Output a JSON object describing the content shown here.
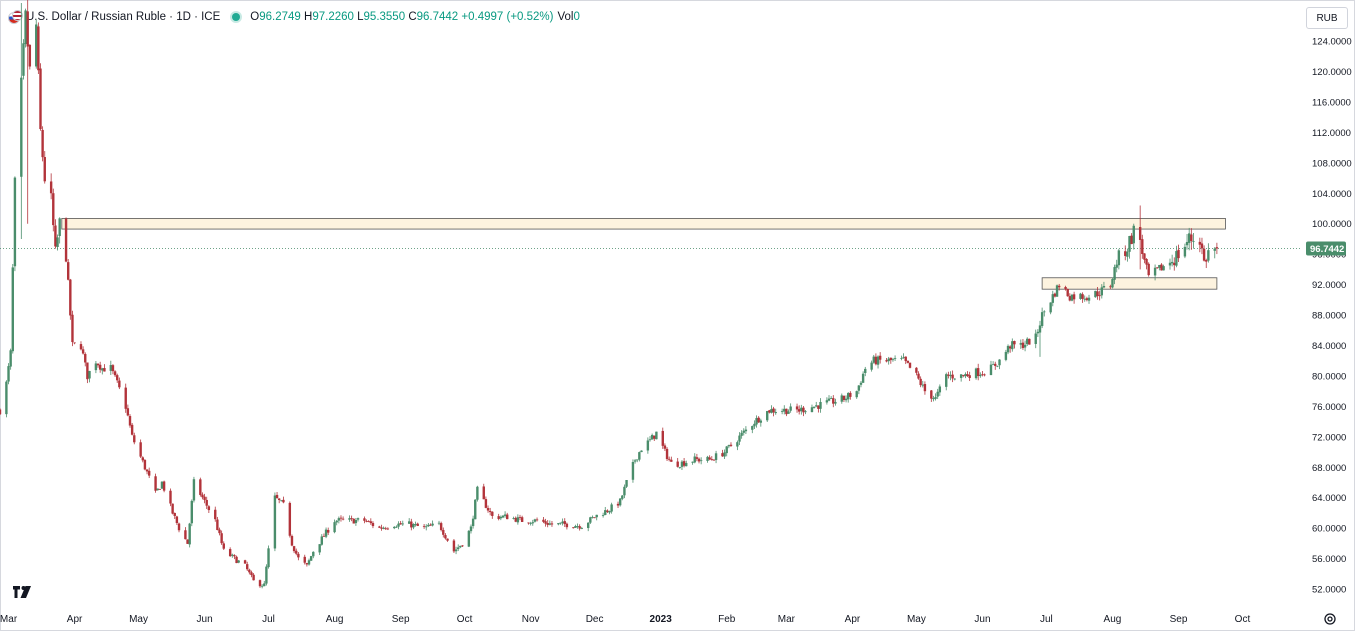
{
  "header": {
    "title": "U.S. Dollar / Russian Ruble · 1D · ICE",
    "ohlc": [
      {
        "key": "O",
        "value": "96.2749"
      },
      {
        "key": "H",
        "value": "97.2260"
      },
      {
        "key": "L",
        "value": "95.3550"
      },
      {
        "key": "C",
        "value": "96.7442"
      }
    ],
    "change": "+0.4997 (+0.52%)",
    "volume_label": "Vol",
    "volume_value": "0",
    "currency": "RUB"
  },
  "colors": {
    "up": "#4a8d6b",
    "down": "#b2333a",
    "zone_fill": "#fdf3df",
    "zone_stroke": "#555555",
    "price_tag": "#4a8d6b"
  },
  "icons": [
    "tradingview-logo-icon",
    "settings-gear-icon",
    "flag-pair-icon",
    "market-status-dot-icon"
  ],
  "chart_data": {
    "type": "candlestick",
    "last_price": 96.7442,
    "last_price_label": "96.7442",
    "y_axis": {
      "range": [
        49.9,
        129.4
      ],
      "ticks": [
        {
          "value": 52,
          "label": "52.0000"
        },
        {
          "value": 56,
          "label": "56.0000"
        },
        {
          "value": 60,
          "label": "60.0000"
        },
        {
          "value": 64,
          "label": "64.0000"
        },
        {
          "value": 68,
          "label": "68.0000"
        },
        {
          "value": 72,
          "label": "72.0000"
        },
        {
          "value": 76,
          "label": "76.0000"
        },
        {
          "value": 80,
          "label": "80.0000"
        },
        {
          "value": 84,
          "label": "84.0000"
        },
        {
          "value": 88,
          "label": "88.0000"
        },
        {
          "value": 92,
          "label": "92.0000"
        },
        {
          "value": 96,
          "label": "96.0000"
        },
        {
          "value": 100,
          "label": "100.0000"
        },
        {
          "value": 104,
          "label": "104.0000"
        },
        {
          "value": 108,
          "label": "108.0000"
        },
        {
          "value": 112,
          "label": "112.0000"
        },
        {
          "value": 116,
          "label": "116.0000"
        },
        {
          "value": 120,
          "label": "120.0000"
        },
        {
          "value": 124,
          "label": "124.0000"
        }
      ]
    },
    "x_axis": {
      "range": [
        "2022-02-25",
        "2023-10-28"
      ],
      "labels": [
        {
          "date": "2022-03-01",
          "label": "Mar",
          "bold": false
        },
        {
          "date": "2022-04-01",
          "label": "Apr",
          "bold": false
        },
        {
          "date": "2022-05-01",
          "label": "May",
          "bold": false
        },
        {
          "date": "2022-06-01",
          "label": "Jun",
          "bold": false
        },
        {
          "date": "2022-07-01",
          "label": "Jul",
          "bold": false
        },
        {
          "date": "2022-08-01",
          "label": "Aug",
          "bold": false
        },
        {
          "date": "2022-09-01",
          "label": "Sep",
          "bold": false
        },
        {
          "date": "2022-10-01",
          "label": "Oct",
          "bold": false
        },
        {
          "date": "2022-11-01",
          "label": "Nov",
          "bold": false
        },
        {
          "date": "2022-12-01",
          "label": "Dec",
          "bold": false
        },
        {
          "date": "2023-01-01",
          "label": "2023",
          "bold": true
        },
        {
          "date": "2023-02-01",
          "label": "Feb",
          "bold": false
        },
        {
          "date": "2023-03-01",
          "label": "Mar",
          "bold": false
        },
        {
          "date": "2023-04-01",
          "label": "Apr",
          "bold": false
        },
        {
          "date": "2023-05-01",
          "label": "May",
          "bold": false
        },
        {
          "date": "2023-06-01",
          "label": "Jun",
          "bold": false
        },
        {
          "date": "2023-07-01",
          "label": "Jul",
          "bold": false
        },
        {
          "date": "2023-08-01",
          "label": "Aug",
          "bold": false
        },
        {
          "date": "2023-09-01",
          "label": "Sep",
          "bold": false
        },
        {
          "date": "2023-10-01",
          "label": "Oct",
          "bold": false
        }
      ]
    },
    "zones": [
      {
        "from": "2022-03-26",
        "to": "2023-09-23",
        "low": 99.3,
        "high": 100.7
      },
      {
        "from": "2023-06-29",
        "to": "2023-09-19",
        "low": 91.4,
        "high": 92.9
      }
    ],
    "series": [
      {
        "anchors": [
          [
            "2022-02-25",
            75.5
          ],
          [
            "2022-02-28",
            79
          ],
          [
            "2022-03-02",
            83
          ],
          [
            "2022-03-04",
            105
          ],
          [
            "2022-03-07",
            118
          ],
          [
            "2022-03-09",
            127
          ],
          [
            "2022-03-11",
            120
          ],
          [
            "2022-03-14",
            126
          ],
          [
            "2022-03-16",
            112
          ],
          [
            "2022-03-18",
            106
          ],
          [
            "2022-03-21",
            103
          ],
          [
            "2022-03-23",
            96
          ],
          [
            "2022-03-25",
            100
          ],
          [
            "2022-03-28",
            96
          ],
          [
            "2022-03-31",
            84
          ],
          [
            "2022-04-04",
            84
          ],
          [
            "2022-04-07",
            80
          ],
          [
            "2022-04-11",
            82
          ],
          [
            "2022-04-14",
            81
          ],
          [
            "2022-04-18",
            81
          ],
          [
            "2022-04-21",
            79
          ],
          [
            "2022-04-25",
            76
          ],
          [
            "2022-04-28",
            72
          ],
          [
            "2022-05-04",
            68
          ],
          [
            "2022-05-09",
            64.5
          ],
          [
            "2022-05-12",
            66
          ],
          [
            "2022-05-17",
            62
          ],
          [
            "2022-05-20",
            60
          ],
          [
            "2022-05-24",
            58
          ],
          [
            "2022-05-27",
            66
          ],
          [
            "2022-05-31",
            64
          ],
          [
            "2022-06-06",
            61
          ],
          [
            "2022-06-10",
            57
          ],
          [
            "2022-06-15",
            56
          ],
          [
            "2022-06-20",
            55
          ],
          [
            "2022-06-24",
            53
          ],
          [
            "2022-06-29",
            52.5
          ],
          [
            "2022-07-04",
            64
          ],
          [
            "2022-07-08",
            63
          ],
          [
            "2022-07-12",
            58
          ],
          [
            "2022-07-15",
            56
          ],
          [
            "2022-07-19",
            55
          ],
          [
            "2022-07-22",
            57
          ],
          [
            "2022-07-27",
            59
          ],
          [
            "2022-08-01",
            61
          ],
          [
            "2022-08-08",
            61
          ],
          [
            "2022-08-15",
            61
          ],
          [
            "2022-08-22",
            60
          ],
          [
            "2022-08-29",
            60.5
          ],
          [
            "2022-09-05",
            60.5
          ],
          [
            "2022-09-12",
            60
          ],
          [
            "2022-09-19",
            60.5
          ],
          [
            "2022-09-26",
            57
          ],
          [
            "2022-09-30",
            58
          ],
          [
            "2022-10-04",
            60
          ],
          [
            "2022-10-07",
            65
          ],
          [
            "2022-10-11",
            63
          ],
          [
            "2022-10-14",
            61.5
          ],
          [
            "2022-10-21",
            61.5
          ],
          [
            "2022-10-28",
            61
          ],
          [
            "2022-11-04",
            61
          ],
          [
            "2022-11-11",
            60.5
          ],
          [
            "2022-11-18",
            60.5
          ],
          [
            "2022-11-25",
            60.3
          ],
          [
            "2022-12-01",
            61.5
          ],
          [
            "2022-12-08",
            62.5
          ],
          [
            "2022-12-13",
            63.5
          ],
          [
            "2022-12-16",
            66
          ],
          [
            "2022-12-20",
            69
          ],
          [
            "2022-12-23",
            70.5
          ],
          [
            "2022-12-27",
            71.5
          ],
          [
            "2022-12-30",
            72.5
          ],
          [
            "2023-01-03",
            70
          ],
          [
            "2023-01-06",
            68.5
          ],
          [
            "2023-01-10",
            68.5
          ],
          [
            "2023-01-17",
            69
          ],
          [
            "2023-01-24",
            69
          ],
          [
            "2023-01-31",
            70
          ],
          [
            "2023-02-07",
            72
          ],
          [
            "2023-02-14",
            74
          ],
          [
            "2023-02-21",
            75.5
          ],
          [
            "2023-02-28",
            75.5
          ],
          [
            "2023-03-07",
            75.5
          ],
          [
            "2023-03-14",
            76
          ],
          [
            "2023-03-21",
            76.5
          ],
          [
            "2023-03-28",
            77
          ],
          [
            "2023-04-03",
            78
          ],
          [
            "2023-04-07",
            81
          ],
          [
            "2023-04-11",
            82
          ],
          [
            "2023-04-18",
            82
          ],
          [
            "2023-04-25",
            82
          ],
          [
            "2023-05-01",
            80
          ],
          [
            "2023-05-05",
            78
          ],
          [
            "2023-05-10",
            77
          ],
          [
            "2023-05-15",
            80
          ],
          [
            "2023-05-22",
            80
          ],
          [
            "2023-05-29",
            80.5
          ],
          [
            "2023-06-01",
            80.5
          ],
          [
            "2023-06-05",
            81
          ],
          [
            "2023-06-09",
            82
          ],
          [
            "2023-06-14",
            84
          ],
          [
            "2023-06-19",
            84
          ],
          [
            "2023-06-26",
            85
          ],
          [
            "2023-06-29",
            88
          ],
          [
            "2023-07-03",
            90
          ],
          [
            "2023-07-07",
            92
          ],
          [
            "2023-07-12",
            90.5
          ],
          [
            "2023-07-17",
            90.5
          ],
          [
            "2023-07-21",
            90.5
          ],
          [
            "2023-07-26",
            91
          ],
          [
            "2023-07-31",
            92
          ],
          [
            "2023-08-03",
            95
          ],
          [
            "2023-08-08",
            97
          ],
          [
            "2023-08-11",
            99
          ],
          [
            "2023-08-14",
            98
          ],
          [
            "2023-08-16",
            95
          ],
          [
            "2023-08-18",
            93
          ],
          [
            "2023-08-23",
            94
          ],
          [
            "2023-08-28",
            95
          ],
          [
            "2023-09-01",
            96
          ],
          [
            "2023-09-06",
            98
          ],
          [
            "2023-09-11",
            98
          ],
          [
            "2023-09-13",
            95
          ],
          [
            "2023-09-15",
            96.2
          ],
          [
            "2023-09-19",
            96.74
          ]
        ],
        "notable_wicks": [
          [
            "2022-03-07",
            129.0,
            98.0
          ],
          [
            "2022-03-10",
            130.0,
            100.0
          ],
          [
            "2023-08-14",
            102.4,
            94.0
          ],
          [
            "2023-06-28",
            86.0,
            82.5
          ]
        ]
      }
    ]
  }
}
